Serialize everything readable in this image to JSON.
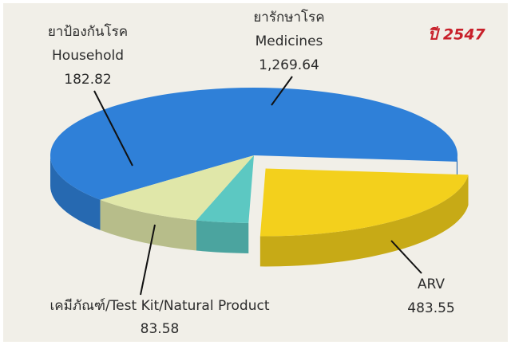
{
  "chart_data": {
    "type": "pie",
    "title": "ปี 2547",
    "categories": [
      "Medicines",
      "ARV",
      "เคมีภัณฑ์/Test Kit/Natural Product",
      "Household"
    ],
    "categories_th": [
      "ยารักษาโรค",
      null,
      null,
      "ยาป้องกันโรค"
    ],
    "values": [
      1269.64,
      483.55,
      83.58,
      182.82
    ],
    "value_labels": [
      "1,269.64",
      "483.55",
      "83.58",
      "182.82"
    ],
    "colors": [
      "#2f80d8",
      "#f3d01c",
      "#5cc8c2",
      "#e0e7a9"
    ]
  }
}
